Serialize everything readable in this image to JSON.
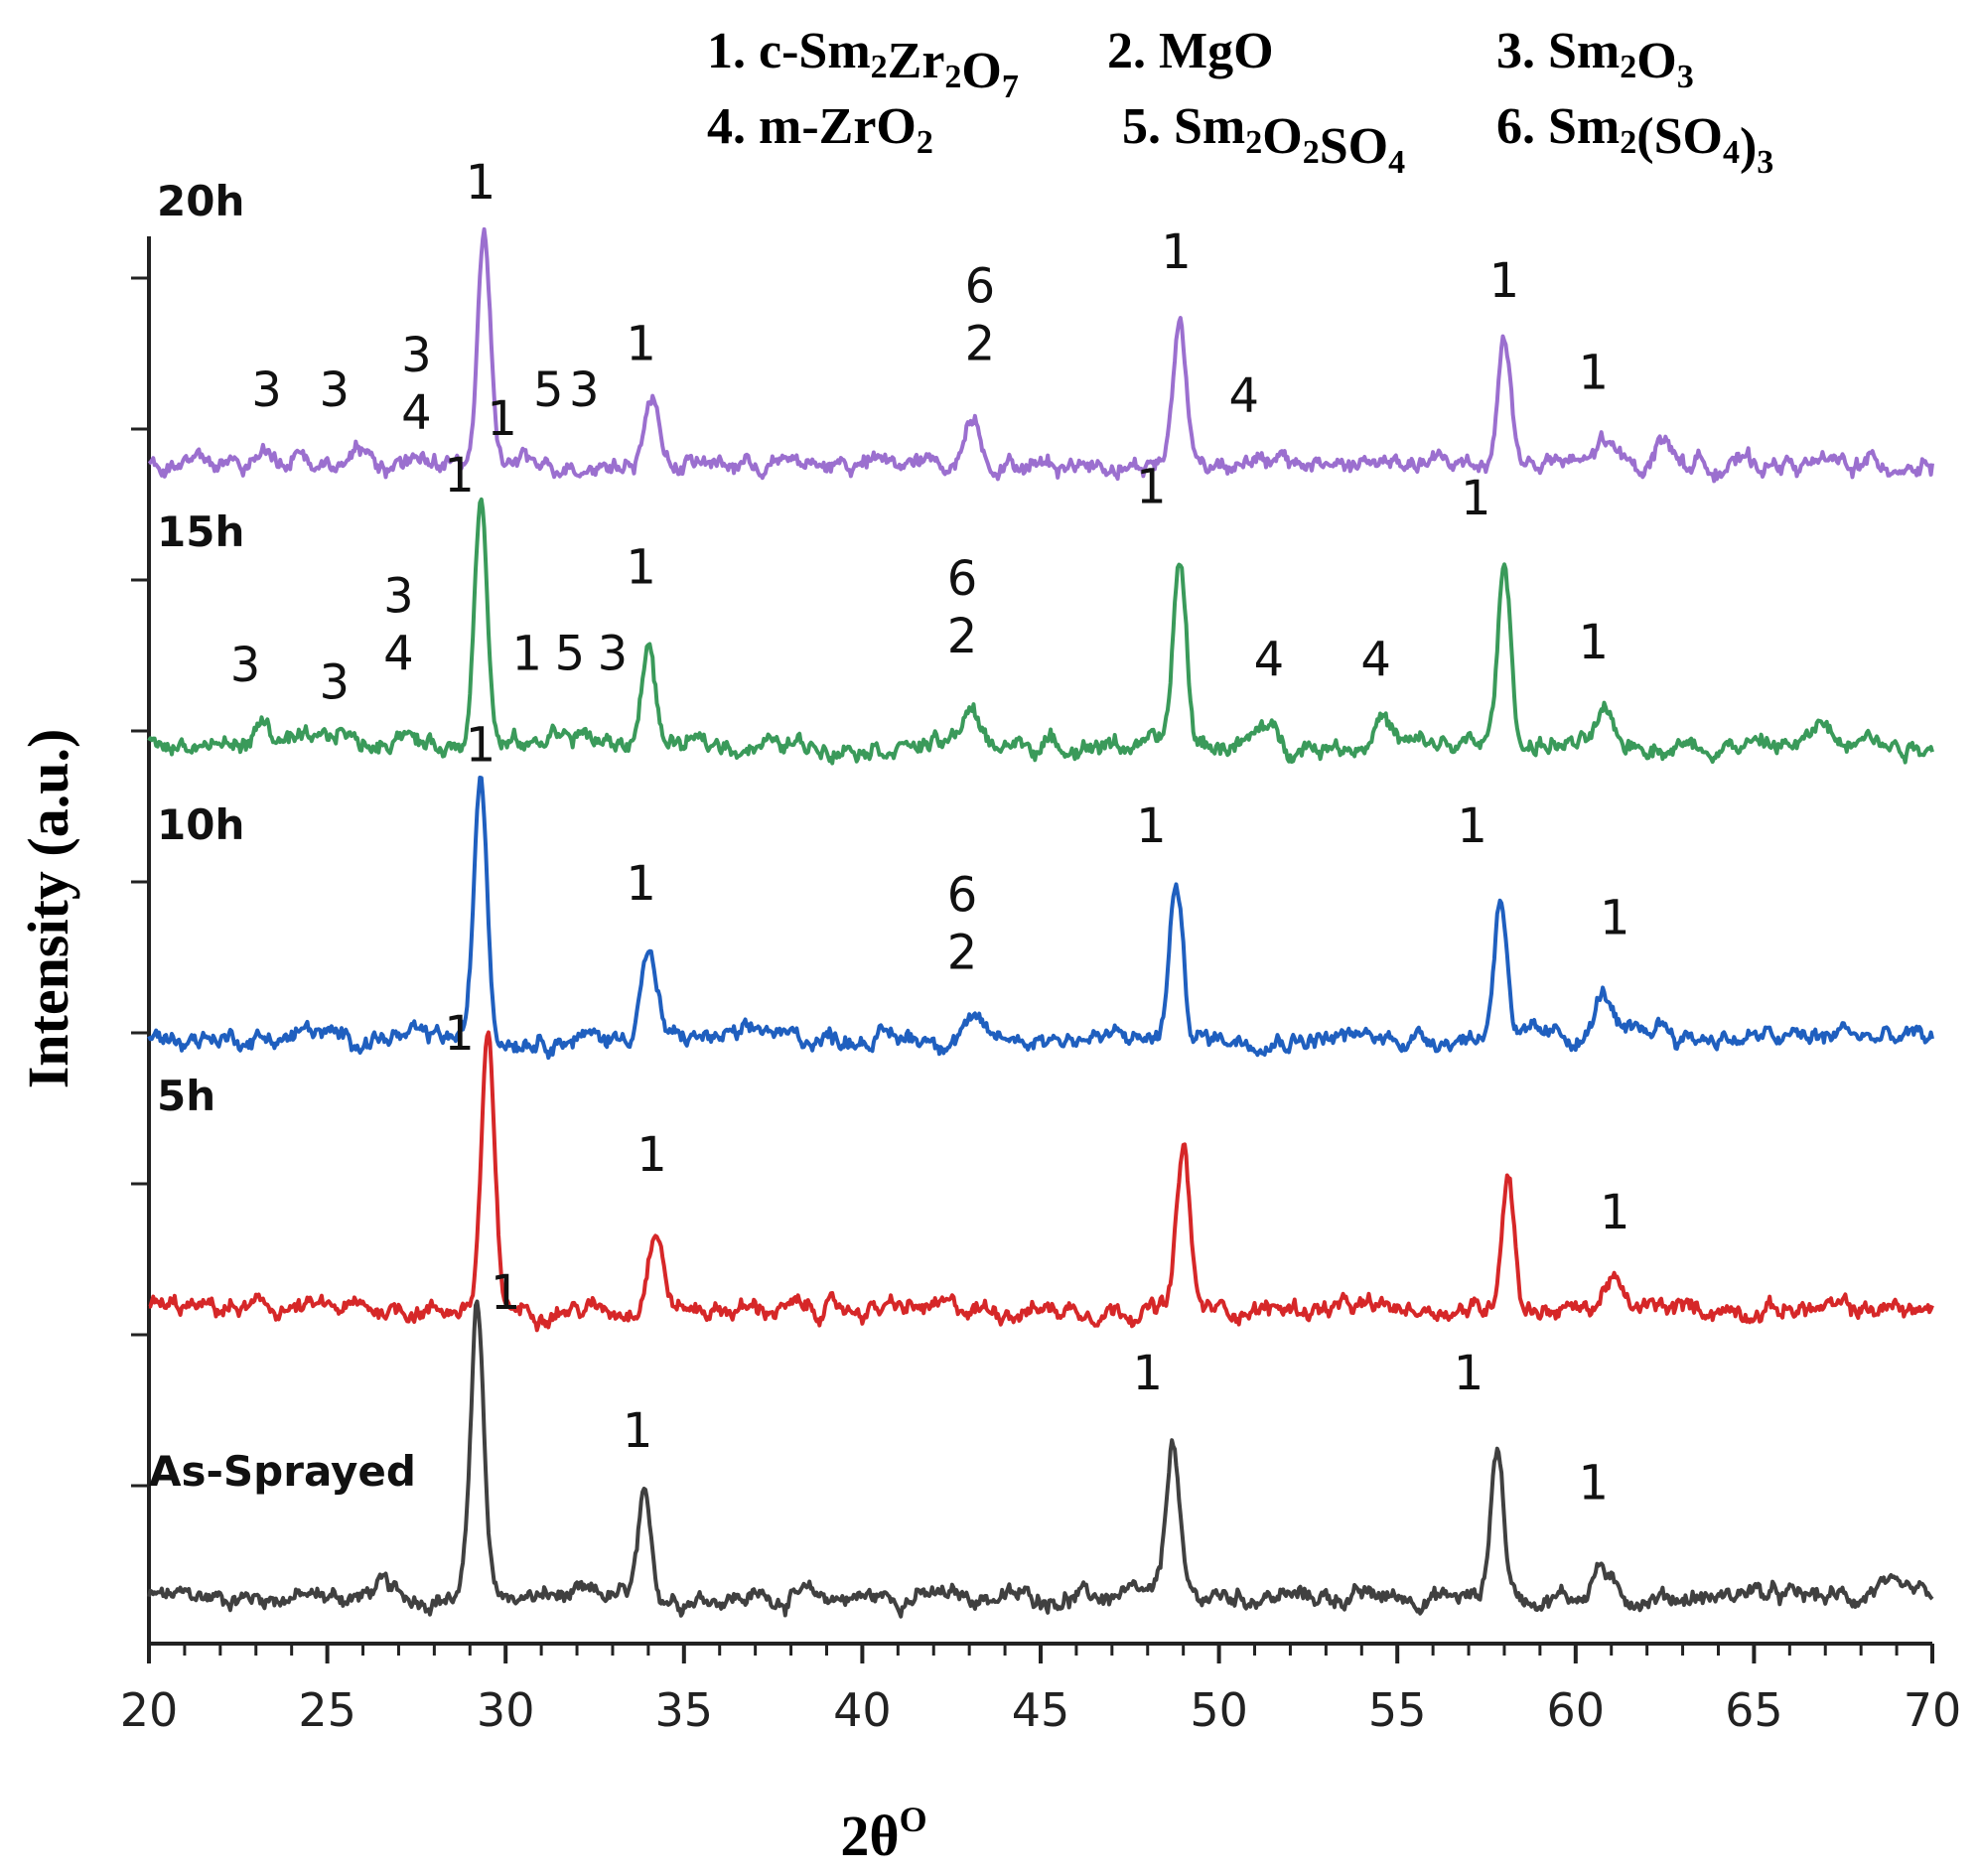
{
  "chart_data": {
    "type": "line",
    "title": "",
    "xlabel": "2θ",
    "xlabel_superscript": "O",
    "ylabel": "Intensity (a.u.)",
    "xlim": [
      20,
      70
    ],
    "x_ticks": [
      "20",
      "25",
      "30",
      "35",
      "40",
      "45",
      "50",
      "55",
      "60",
      "65",
      "70"
    ],
    "stacked": true,
    "y_ticks_labeled": false,
    "legend_entries": [
      {
        "num": "1.",
        "parts": [
          [
            "c-Sm",
            ""
          ],
          [
            "2",
            "sub"
          ],
          [
            "Zr",
            ""
          ],
          [
            "2",
            "sub"
          ],
          [
            "O",
            ""
          ],
          [
            "7",
            "sub"
          ]
        ]
      },
      {
        "num": "2.",
        "parts": [
          [
            "MgO",
            ""
          ]
        ]
      },
      {
        "num": "3.",
        "parts": [
          [
            "Sm",
            ""
          ],
          [
            "2",
            "sub"
          ],
          [
            "O",
            ""
          ],
          [
            "3",
            "sub"
          ]
        ]
      },
      {
        "num": "4.",
        "parts": [
          [
            "m-ZrO",
            ""
          ],
          [
            "2",
            "sub"
          ]
        ]
      },
      {
        "num": "5.",
        "parts": [
          [
            "Sm",
            ""
          ],
          [
            "2",
            "sub"
          ],
          [
            "O",
            ""
          ],
          [
            "2",
            "sub"
          ],
          [
            "SO",
            ""
          ],
          [
            "4",
            "sub"
          ]
        ]
      },
      {
        "num": "6.",
        "parts": [
          [
            "Sm",
            ""
          ],
          [
            "2",
            "sub"
          ],
          [
            "(SO",
            ""
          ],
          [
            "4",
            "sub"
          ],
          [
            ")",
            ""
          ],
          [
            "3",
            "sub"
          ]
        ]
      }
    ],
    "series": [
      {
        "name": "As-Sprayed",
        "color": "#404040",
        "peaks": [
          [
            29.2,
            5.1
          ],
          [
            33.9,
            1.6
          ],
          [
            48.7,
            2.7
          ],
          [
            57.8,
            2.6
          ],
          [
            60.7,
            0.55
          ],
          [
            26.5,
            0.2
          ],
          [
            64.9,
            0.15
          ],
          [
            68.5,
            0.2
          ]
        ],
        "labels": [
          {
            "x": 30.0,
            "h": 5.0,
            "text": "1"
          },
          {
            "x": 33.7,
            "h": 2.6,
            "text": "1"
          },
          {
            "x": 48.0,
            "h": 3.6,
            "text": "1"
          },
          {
            "x": 57.0,
            "h": 3.6,
            "text": "1"
          },
          {
            "x": 60.5,
            "h": 1.7,
            "text": "1"
          }
        ]
      },
      {
        "name": "5h",
        "color": "#d62728",
        "peaks": [
          [
            29.5,
            4.7
          ],
          [
            34.2,
            1.35
          ],
          [
            49.0,
            2.8
          ],
          [
            58.1,
            2.4
          ],
          [
            61.0,
            0.55
          ]
        ],
        "labels": [
          {
            "x": 28.7,
            "h": 4.5,
            "text": "1"
          },
          {
            "x": 34.1,
            "h": 2.4,
            "text": "1"
          },
          {
            "x": 61.1,
            "h": 1.4,
            "text": "1"
          }
        ]
      },
      {
        "name": "10h",
        "color": "#1f5fbf",
        "peaks": [
          [
            29.3,
            4.6
          ],
          [
            34.0,
            1.5
          ],
          [
            43.0,
            0.3
          ],
          [
            48.8,
            2.7
          ],
          [
            57.9,
            2.5
          ],
          [
            60.8,
            0.8
          ],
          [
            24.5,
            0.15
          ],
          [
            37.3,
            0.15
          ],
          [
            62.4,
            0.25
          ],
          [
            67.6,
            0.15
          ]
        ],
        "labels": [
          {
            "x": 29.3,
            "h": 4.8,
            "text": "1"
          },
          {
            "x": 33.8,
            "h": 2.4,
            "text": "1"
          },
          {
            "x": 42.8,
            "h": 1.2,
            "text": "2"
          },
          {
            "x": 42.8,
            "h": 2.2,
            "text": "6"
          },
          {
            "x": 48.1,
            "h": 3.4,
            "text": "1"
          },
          {
            "x": 57.1,
            "h": 3.4,
            "text": "1"
          },
          {
            "x": 61.1,
            "h": 1.8,
            "text": "1"
          }
        ]
      },
      {
        "name": "15h",
        "color": "#3a9a5a",
        "peaks": [
          [
            29.3,
            4.4
          ],
          [
            34.0,
            1.8
          ],
          [
            43.0,
            0.65
          ],
          [
            48.9,
            3.2
          ],
          [
            58.0,
            3.1
          ],
          [
            23.2,
            0.4
          ],
          [
            25.4,
            0.25
          ],
          [
            27.1,
            0.3
          ],
          [
            31.4,
            0.3
          ],
          [
            32.2,
            0.2
          ],
          [
            51.3,
            0.35
          ],
          [
            54.6,
            0.5
          ],
          [
            60.8,
            0.45
          ],
          [
            66.9,
            0.4
          ],
          [
            68.1,
            0.4
          ]
        ],
        "labels": [
          {
            "x": 28.7,
            "h": 4.4,
            "text": "1"
          },
          {
            "x": 33.8,
            "h": 2.8,
            "text": "1"
          },
          {
            "x": 42.8,
            "h": 1.6,
            "text": "2"
          },
          {
            "x": 42.8,
            "h": 2.6,
            "text": "6"
          },
          {
            "x": 48.1,
            "h": 4.2,
            "text": "1"
          },
          {
            "x": 57.2,
            "h": 4.0,
            "text": "1"
          },
          {
            "x": 60.5,
            "h": 1.5,
            "text": "1"
          },
          {
            "x": 22.7,
            "h": 1.1,
            "text": "3"
          },
          {
            "x": 25.2,
            "h": 0.8,
            "text": "3"
          },
          {
            "x": 27.0,
            "h": 1.3,
            "text": "4"
          },
          {
            "x": 27.0,
            "h": 2.3,
            "text": "3"
          },
          {
            "x": 30.6,
            "h": 1.3,
            "text": "1"
          },
          {
            "x": 31.8,
            "h": 1.3,
            "text": "5"
          },
          {
            "x": 33.0,
            "h": 1.3,
            "text": "3"
          },
          {
            "x": 51.4,
            "h": 1.2,
            "text": "4"
          },
          {
            "x": 54.4,
            "h": 1.2,
            "text": "4"
          }
        ]
      },
      {
        "name": "20h",
        "color": "#9b6fcf",
        "peaks": [
          [
            29.4,
            3.8
          ],
          [
            34.1,
            1.1
          ],
          [
            43.1,
            0.85
          ],
          [
            48.9,
            2.5
          ],
          [
            58.0,
            2.2
          ],
          [
            23.4,
            0.25
          ],
          [
            24.2,
            0.3
          ],
          [
            26.0,
            0.2
          ],
          [
            60.8,
            0.4
          ],
          [
            62.5,
            0.45
          ],
          [
            50.7,
            0.15
          ]
        ],
        "labels": [
          {
            "x": 29.3,
            "h": 4.6,
            "text": "1"
          },
          {
            "x": 33.8,
            "h": 1.8,
            "text": "1"
          },
          {
            "x": 43.3,
            "h": 1.8,
            "text": "2"
          },
          {
            "x": 43.3,
            "h": 2.8,
            "text": "6"
          },
          {
            "x": 48.8,
            "h": 3.4,
            "text": "1"
          },
          {
            "x": 58.0,
            "h": 2.9,
            "text": "1"
          },
          {
            "x": 60.5,
            "h": 1.3,
            "text": "1"
          },
          {
            "x": 23.3,
            "h": 1.0,
            "text": "3"
          },
          {
            "x": 25.2,
            "h": 1.0,
            "text": "3"
          },
          {
            "x": 27.5,
            "h": 0.6,
            "text": "4"
          },
          {
            "x": 27.5,
            "h": 1.6,
            "text": "3"
          },
          {
            "x": 29.9,
            "h": 0.5,
            "text": "1"
          },
          {
            "x": 31.2,
            "h": 1.0,
            "text": "5"
          },
          {
            "x": 32.2,
            "h": 1.0,
            "text": "3"
          },
          {
            "x": 50.7,
            "h": 0.9,
            "text": "4"
          }
        ]
      }
    ]
  }
}
